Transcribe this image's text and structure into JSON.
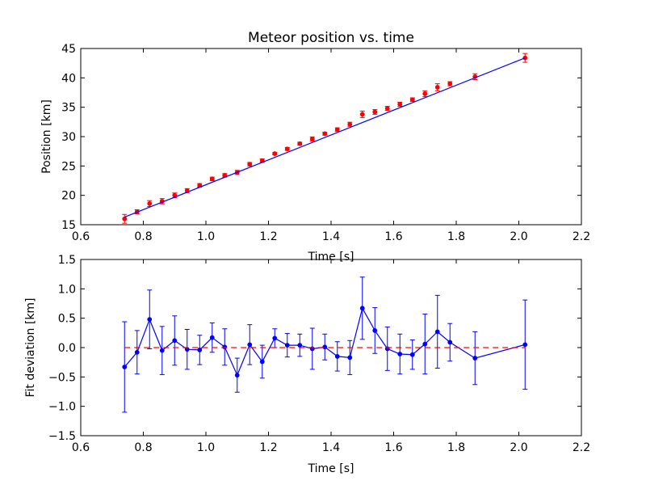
{
  "figure": {
    "background": "#ffffff"
  },
  "chart_data": [
    {
      "type": "scatter",
      "title": "Meteor position vs. time",
      "xlabel": "Time [s]",
      "ylabel": "Position [km]",
      "xlim": [
        0.6,
        2.2
      ],
      "ylim": [
        15,
        45
      ],
      "xticks": [
        "0.6",
        "0.8",
        "1.0",
        "1.2",
        "1.4",
        "1.6",
        "1.8",
        "2.0",
        "2.2"
      ],
      "yticks": [
        "15",
        "20",
        "25",
        "30",
        "35",
        "40",
        "45"
      ],
      "grid": false,
      "series": [
        {
          "kind": "errorbar",
          "color": "#ff0000",
          "x": [
            0.74,
            0.78,
            0.82,
            0.86,
            0.9,
            0.94,
            0.98,
            1.02,
            1.06,
            1.1,
            1.14,
            1.18,
            1.22,
            1.26,
            1.3,
            1.34,
            1.38,
            1.42,
            1.46,
            1.5,
            1.54,
            1.58,
            1.62,
            1.66,
            1.7,
            1.74,
            1.78,
            1.86,
            2.02
          ],
          "y": [
            16.0,
            17.2,
            18.6,
            19.0,
            20.0,
            20.8,
            21.7,
            22.8,
            23.4,
            23.9,
            25.3,
            25.9,
            27.1,
            27.9,
            28.8,
            29.6,
            30.5,
            31.2,
            32.1,
            33.8,
            34.2,
            34.8,
            35.5,
            36.3,
            37.3,
            38.4,
            39.0,
            40.2,
            43.4
          ],
          "yerr": [
            0.75,
            0.35,
            0.5,
            0.45,
            0.4,
            0.35,
            0.3,
            0.3,
            0.3,
            0.35,
            0.3,
            0.3,
            0.2,
            0.25,
            0.25,
            0.35,
            0.25,
            0.3,
            0.35,
            0.55,
            0.4,
            0.35,
            0.35,
            0.3,
            0.5,
            0.6,
            0.35,
            0.5,
            0.75
          ]
        },
        {
          "kind": "line",
          "color": "#0000ff",
          "x": [
            0.74,
            2.02
          ],
          "y": [
            16.3,
            43.4
          ]
        }
      ]
    },
    {
      "type": "line",
      "title": "",
      "xlabel": "Time [s]",
      "ylabel": "Fit deviation [km]",
      "xlim": [
        0.6,
        2.2
      ],
      "ylim": [
        -1.5,
        1.5
      ],
      "xticks": [
        "0.6",
        "0.8",
        "1.0",
        "1.2",
        "1.4",
        "1.6",
        "1.8",
        "2.0",
        "2.2"
      ],
      "yticks": [
        "−1.5",
        "−1.0",
        "−0.5",
        "0.0",
        "0.5",
        "1.0",
        "1.5"
      ],
      "grid": false,
      "series": [
        {
          "kind": "errorbar-line",
          "color": "#0000ff",
          "x": [
            0.74,
            0.78,
            0.82,
            0.86,
            0.9,
            0.94,
            0.98,
            1.02,
            1.06,
            1.1,
            1.14,
            1.18,
            1.22,
            1.26,
            1.3,
            1.34,
            1.38,
            1.42,
            1.46,
            1.5,
            1.54,
            1.58,
            1.62,
            1.66,
            1.7,
            1.74,
            1.78,
            1.86,
            2.02
          ],
          "y": [
            -0.33,
            -0.08,
            0.48,
            -0.05,
            0.12,
            -0.03,
            -0.04,
            0.17,
            0.01,
            -0.47,
            0.05,
            -0.24,
            0.16,
            0.04,
            0.04,
            -0.02,
            0.01,
            -0.15,
            -0.17,
            0.67,
            0.29,
            -0.02,
            -0.11,
            -0.12,
            0.06,
            0.27,
            0.09,
            -0.18,
            0.05
          ],
          "yerr": [
            0.77,
            0.37,
            0.5,
            0.41,
            0.42,
            0.34,
            0.25,
            0.25,
            0.31,
            0.29,
            0.34,
            0.28,
            0.16,
            0.2,
            0.19,
            0.35,
            0.22,
            0.25,
            0.29,
            0.53,
            0.39,
            0.37,
            0.34,
            0.25,
            0.51,
            0.62,
            0.32,
            0.45,
            0.76
          ]
        },
        {
          "kind": "reference-line",
          "style": "dashed",
          "color": "#ff0000",
          "x": [
            0.74,
            2.02
          ],
          "y": [
            0,
            0
          ]
        }
      ]
    }
  ]
}
